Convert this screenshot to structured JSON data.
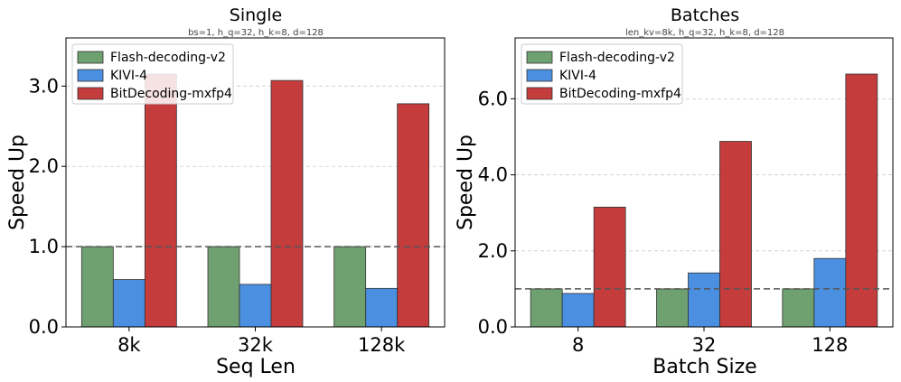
{
  "colors": {
    "flash": "#6fa06f",
    "kivi": "#4a8fe0",
    "bitdecoding": "#c43c3c",
    "baseline": "#555555",
    "grid": "#cccccc"
  },
  "chart_data": [
    {
      "type": "bar",
      "title": "Single",
      "subtitle": "bs=1, h_q=32, h_k=8, d=128",
      "xlabel": "Seq Len",
      "ylabel": "Speed Up",
      "categories": [
        "8k",
        "32k",
        "128k"
      ],
      "ylim": [
        0,
        3.6
      ],
      "yticks": [
        0.0,
        1.0,
        2.0,
        3.0
      ],
      "ytick_labels": [
        "0.0",
        "1.0",
        "2.0",
        "3.0"
      ],
      "baseline": 1.0,
      "grid": "horizontal dashed",
      "legend_position": "upper-left",
      "series": [
        {
          "name": "Flash-decoding-v2",
          "values": [
            1.0,
            1.0,
            1.0
          ]
        },
        {
          "name": "KIVI-4",
          "values": [
            0.59,
            0.53,
            0.48
          ]
        },
        {
          "name": "BitDecoding-mxfp4",
          "values": [
            3.15,
            3.07,
            2.78
          ]
        }
      ]
    },
    {
      "type": "bar",
      "title": "Batches",
      "subtitle": "len_kv=8k, h_q=32, h_k=8, d=128",
      "xlabel": "Batch Size",
      "ylabel": "Speed Up",
      "categories": [
        "8",
        "32",
        "128"
      ],
      "ylim": [
        0,
        7.6
      ],
      "yticks": [
        0.0,
        2.0,
        4.0,
        6.0
      ],
      "ytick_labels": [
        "0.0",
        "2.0",
        "4.0",
        "6.0"
      ],
      "baseline": 1.0,
      "grid": "horizontal dashed",
      "legend_position": "upper-left",
      "series": [
        {
          "name": "Flash-decoding-v2",
          "values": [
            1.0,
            1.0,
            1.0
          ]
        },
        {
          "name": "KIVI-4",
          "values": [
            0.88,
            1.42,
            1.8
          ]
        },
        {
          "name": "BitDecoding-mxfp4",
          "values": [
            3.15,
            4.88,
            6.65
          ]
        }
      ]
    }
  ]
}
